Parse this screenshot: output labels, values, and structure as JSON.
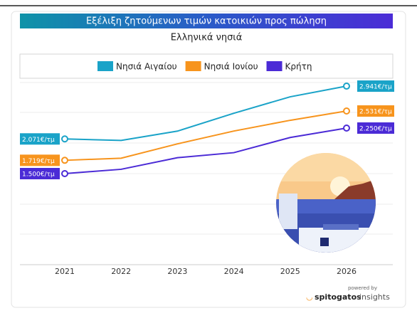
{
  "chart_data": {
    "type": "line",
    "title": "Εξέλιξη ζητούμενων τιμών κατοικιών προς πώληση",
    "subtitle": "Ελληνικά νησιά",
    "categories": [
      "2021",
      "2022",
      "2023",
      "2024",
      "2025",
      "2026"
    ],
    "series": [
      {
        "name": "Νησιά Αιγαίου",
        "color": "#1aa3c8",
        "values": [
          2071,
          2047,
          2200,
          2494,
          2765,
          2941
        ],
        "value_labels": [
          "2.071€/τμ",
          null,
          null,
          null,
          null,
          "2.941€/τμ"
        ]
      },
      {
        "name": "Νησιά Ιονίου",
        "color": "#f7941d",
        "values": [
          1719,
          1754,
          1990,
          2201,
          2378,
          2531
        ],
        "value_labels": [
          "1.719€/τμ",
          null,
          null,
          null,
          null,
          "2.531€/τμ"
        ]
      },
      {
        "name": "Κρήτη",
        "color": "#4b2bd6",
        "values": [
          1500,
          1571,
          1762,
          1845,
          2095,
          2250
        ],
        "value_labels": [
          "1.500€/τμ",
          null,
          null,
          null,
          null,
          "2.250€/τμ"
        ]
      }
    ],
    "ylim": [
      0,
      3000
    ],
    "legend": "top"
  },
  "branding": {
    "powered_by": "powered by",
    "name": "spitogatos",
    "suffix": "insights"
  }
}
